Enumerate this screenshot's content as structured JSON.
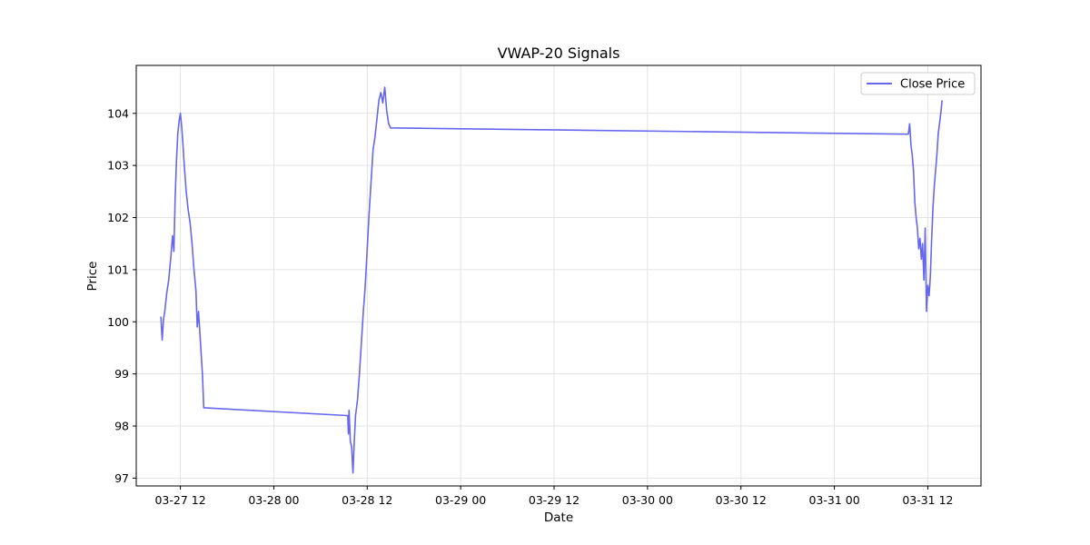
{
  "chart_data": {
    "type": "line",
    "title": "VWAP-20 Signals",
    "xlabel": "Date",
    "ylabel": "Price",
    "x_tick_labels": [
      "03-27 12",
      "03-28 00",
      "03-28 12",
      "03-29 00",
      "03-29 12",
      "03-30 00",
      "03-30 12",
      "03-31 00",
      "03-31 12"
    ],
    "x_ticks": [
      "2024-03-27 12:00",
      "2024-03-28 00:00",
      "2024-03-28 12:00",
      "2024-03-29 00:00",
      "2024-03-29 12:00",
      "2024-03-30 00:00",
      "2024-03-30 12:00",
      "2024-03-31 00:00",
      "2024-03-31 12:00"
    ],
    "y_ticks": [
      97,
      98,
      99,
      100,
      101,
      102,
      103,
      104
    ],
    "xlim": [
      "2024-03-27 06:20",
      "2024-03-31 18:50"
    ],
    "ylim": [
      96.85,
      104.92
    ],
    "grid": true,
    "legend_position": "top-right",
    "series": [
      {
        "name": "Close Price",
        "color": "#6666ee",
        "points": [
          [
            "2024-03-27 09:30",
            100.1
          ],
          [
            "2024-03-27 09:40",
            99.65
          ],
          [
            "2024-03-27 09:50",
            100.05
          ],
          [
            "2024-03-27 10:00",
            100.2
          ],
          [
            "2024-03-27 10:15",
            100.55
          ],
          [
            "2024-03-27 10:30",
            100.8
          ],
          [
            "2024-03-27 10:45",
            101.2
          ],
          [
            "2024-03-27 11:00",
            101.65
          ],
          [
            "2024-03-27 11:10",
            101.35
          ],
          [
            "2024-03-27 11:20",
            102.4
          ],
          [
            "2024-03-27 11:30",
            103.1
          ],
          [
            "2024-03-27 11:40",
            103.6
          ],
          [
            "2024-03-27 11:50",
            103.85
          ],
          [
            "2024-03-27 12:00",
            104.0
          ],
          [
            "2024-03-27 12:10",
            103.75
          ],
          [
            "2024-03-27 12:20",
            103.4
          ],
          [
            "2024-03-27 12:30",
            103.0
          ],
          [
            "2024-03-27 12:45",
            102.5
          ],
          [
            "2024-03-27 13:00",
            102.15
          ],
          [
            "2024-03-27 13:15",
            101.9
          ],
          [
            "2024-03-27 13:30",
            101.5
          ],
          [
            "2024-03-27 13:45",
            101.0
          ],
          [
            "2024-03-27 14:00",
            100.6
          ],
          [
            "2024-03-27 14:10",
            99.9
          ],
          [
            "2024-03-27 14:20",
            100.2
          ],
          [
            "2024-03-27 14:35",
            99.6
          ],
          [
            "2024-03-27 14:50",
            99.0
          ],
          [
            "2024-03-27 15:00",
            98.35
          ],
          [
            "2024-03-28 09:30",
            98.2
          ],
          [
            "2024-03-28 09:35",
            97.85
          ],
          [
            "2024-03-28 09:40",
            98.3
          ],
          [
            "2024-03-28 09:50",
            97.7
          ],
          [
            "2024-03-28 10:00",
            97.6
          ],
          [
            "2024-03-28 10:10",
            97.1
          ],
          [
            "2024-03-28 10:20",
            97.7
          ],
          [
            "2024-03-28 10:30",
            98.2
          ],
          [
            "2024-03-28 10:45",
            98.5
          ],
          [
            "2024-03-28 11:00",
            99.0
          ],
          [
            "2024-03-28 11:15",
            99.6
          ],
          [
            "2024-03-28 11:30",
            100.2
          ],
          [
            "2024-03-28 11:45",
            100.7
          ],
          [
            "2024-03-28 12:00",
            101.4
          ],
          [
            "2024-03-28 12:15",
            102.1
          ],
          [
            "2024-03-28 12:30",
            102.7
          ],
          [
            "2024-03-28 12:45",
            103.3
          ],
          [
            "2024-03-28 13:00",
            103.55
          ],
          [
            "2024-03-28 13:15",
            103.9
          ],
          [
            "2024-03-28 13:30",
            104.25
          ],
          [
            "2024-03-28 13:45",
            104.4
          ],
          [
            "2024-03-28 14:00",
            104.2
          ],
          [
            "2024-03-28 14:15",
            104.5
          ],
          [
            "2024-03-28 14:30",
            104.05
          ],
          [
            "2024-03-28 14:45",
            103.8
          ],
          [
            "2024-03-28 15:00",
            103.72
          ],
          [
            "2024-03-31 09:30",
            103.6
          ],
          [
            "2024-03-31 09:40",
            103.8
          ],
          [
            "2024-03-31 09:50",
            103.4
          ],
          [
            "2024-03-31 10:00",
            103.2
          ],
          [
            "2024-03-31 10:10",
            102.9
          ],
          [
            "2024-03-31 10:20",
            102.3
          ],
          [
            "2024-03-31 10:30",
            102.0
          ],
          [
            "2024-03-31 10:40",
            101.8
          ],
          [
            "2024-03-31 10:50",
            101.4
          ],
          [
            "2024-03-31 11:00",
            101.6
          ],
          [
            "2024-03-31 11:10",
            101.2
          ],
          [
            "2024-03-31 11:20",
            101.5
          ],
          [
            "2024-03-31 11:30",
            100.8
          ],
          [
            "2024-03-31 11:40",
            101.8
          ],
          [
            "2024-03-31 11:50",
            100.2
          ],
          [
            "2024-03-31 12:00",
            100.7
          ],
          [
            "2024-03-31 12:10",
            100.5
          ],
          [
            "2024-03-31 12:20",
            100.9
          ],
          [
            "2024-03-31 12:30",
            101.6
          ],
          [
            "2024-03-31 12:40",
            102.2
          ],
          [
            "2024-03-31 12:50",
            102.6
          ],
          [
            "2024-03-31 13:00",
            102.9
          ],
          [
            "2024-03-31 13:10",
            103.2
          ],
          [
            "2024-03-31 13:20",
            103.6
          ],
          [
            "2024-03-31 13:30",
            103.8
          ],
          [
            "2024-03-31 13:40",
            104.0
          ],
          [
            "2024-03-31 13:50",
            104.25
          ]
        ]
      }
    ]
  }
}
